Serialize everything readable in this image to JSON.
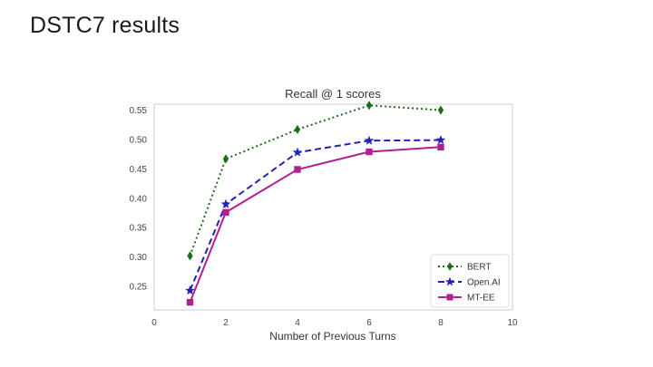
{
  "slide": {
    "title": "DSTC7 results"
  },
  "chart_data": {
    "type": "line",
    "title": "Recall @ 1 scores",
    "xlabel": "Number of Previous Turns",
    "ylabel": "",
    "xlim": [
      0,
      10
    ],
    "ylim": [
      0.21,
      0.56
    ],
    "xticks": [
      0,
      2,
      4,
      6,
      8,
      10
    ],
    "yticks": [
      0.25,
      0.3,
      0.35,
      0.4,
      0.45,
      0.5,
      0.55
    ],
    "x": [
      1,
      2,
      4,
      6,
      8
    ],
    "grid": false,
    "legend_position": "bottom-right",
    "series": [
      {
        "name": "BERT",
        "values": [
          0.302,
          0.467,
          0.517,
          0.558,
          0.55
        ],
        "color": "#1a6e1a",
        "dash": "dotted",
        "marker": "diamond"
      },
      {
        "name": "Open.AI",
        "values": [
          0.243,
          0.39,
          0.478,
          0.498,
          0.499
        ],
        "color": "#2222bb",
        "dash": "dashed",
        "marker": "star"
      },
      {
        "name": "MT-EE",
        "values": [
          0.223,
          0.376,
          0.449,
          0.479,
          0.487
        ],
        "color": "#b0218f",
        "dash": "solid",
        "marker": "square"
      }
    ]
  }
}
